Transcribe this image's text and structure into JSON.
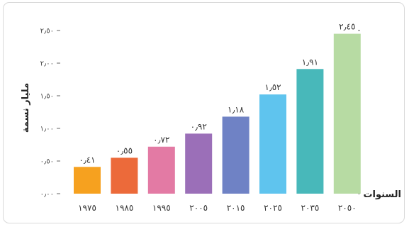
{
  "chart_data": {
    "type": "bar",
    "categories": [
      "١٩٧٥",
      "١٩٨٥",
      "١٩٩٥",
      "٢٠٠٥",
      "٢٠١٥",
      "٢٠٢٥",
      "٢٠٣٥",
      "٢٠٥٠"
    ],
    "values": [
      0.41,
      0.55,
      0.72,
      0.92,
      1.18,
      1.52,
      1.91,
      2.45
    ],
    "value_labels": [
      "٠٫٤١",
      "٠٫٥٥",
      "٠٫٧٢",
      "٠٫٩٢",
      "١٫١٨",
      "١٫٥٢",
      "١٫٩١",
      "٢٫٤٥"
    ],
    "colors": [
      "#f6a11f",
      "#ec6a3a",
      "#e37aa4",
      "#9b6fb8",
      "#6f82c5",
      "#5fc4ee",
      "#48b8ba",
      "#b7dba3"
    ],
    "ylim": [
      0,
      2.5
    ],
    "yticks": [
      0,
      0.5,
      1.0,
      1.5,
      2.0,
      2.5
    ],
    "ytick_labels": [
      "٠٫٠٠",
      "٠٫٥٠",
      "١٫٠٠",
      "١٫٥٠",
      "٢٫٠٠",
      "٢٫٥٠"
    ],
    "ylabel": "مليار نسمة",
    "xlabel": "السنوات",
    "grid": false
  }
}
